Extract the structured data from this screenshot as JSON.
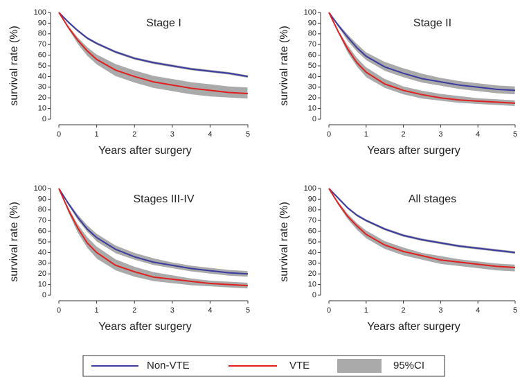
{
  "chart_data": [
    {
      "type": "line",
      "title": "Stage I",
      "xlabel": "Years after surgery",
      "ylabel": "survival rate (%)",
      "x": [
        0,
        0.25,
        0.5,
        0.75,
        1,
        1.5,
        2,
        2.5,
        3,
        3.5,
        4,
        4.5,
        5
      ],
      "xlim": [
        0,
        5
      ],
      "xticks": [
        0,
        1,
        2,
        3,
        4,
        5
      ],
      "ylim": [
        0,
        100
      ],
      "yticks": [
        0,
        10,
        20,
        30,
        40,
        50,
        60,
        70,
        80,
        90,
        100
      ],
      "band_name": "95%CI",
      "band_color": "#aaaaaa",
      "series": [
        {
          "name": "Non-VTE",
          "color": "#3b3ba0",
          "values": [
            100,
            91,
            83,
            76,
            71,
            63,
            57,
            53,
            50,
            47,
            45,
            43,
            40
          ],
          "ci_upper": [
            100,
            92.5,
            84.5,
            77.5,
            72.5,
            64.5,
            58.5,
            54.5,
            51.5,
            48.5,
            46.5,
            44.5,
            41.5
          ],
          "ci_lower": [
            100,
            89.5,
            81.5,
            74.5,
            69.5,
            61.5,
            55.5,
            51.5,
            48.5,
            45.5,
            43.5,
            41.5,
            38.5
          ]
        },
        {
          "name": "VTE",
          "color": "#e0201e",
          "values": [
            100,
            86,
            74,
            64,
            56,
            46,
            40,
            35,
            32,
            29,
            27,
            25,
            24
          ],
          "ci_upper": [
            100,
            88,
            77,
            68,
            61,
            52,
            46,
            41,
            38,
            35,
            33,
            31,
            30
          ],
          "ci_lower": [
            100,
            84,
            70,
            59,
            51,
            40,
            34,
            29,
            26,
            23,
            21,
            20,
            19
          ]
        }
      ]
    },
    {
      "type": "line",
      "title": "Stage II",
      "xlabel": "Years after surgery",
      "ylabel": "survival rate (%)",
      "x": [
        0,
        0.25,
        0.5,
        0.75,
        1,
        1.5,
        2,
        2.5,
        3,
        3.5,
        4,
        4.5,
        5
      ],
      "xlim": [
        0,
        5
      ],
      "xticks": [
        0,
        1,
        2,
        3,
        4,
        5
      ],
      "ylim": [
        0,
        100
      ],
      "yticks": [
        0,
        10,
        20,
        30,
        40,
        50,
        60,
        70,
        80,
        90,
        100
      ],
      "band_color": "#aaaaaa",
      "series": [
        {
          "color": "#3b3ba0",
          "values": [
            100,
            88,
            77,
            67,
            59,
            49,
            43,
            38,
            35,
            32,
            30,
            28,
            27
          ],
          "ci_upper": [
            100,
            90,
            80,
            71,
            63,
            54,
            48,
            43,
            39,
            36,
            34,
            32,
            31
          ],
          "ci_lower": [
            100,
            86,
            73,
            63,
            55,
            45,
            39,
            34,
            31,
            28,
            26,
            24,
            23
          ]
        },
        {
          "color": "#e0201e",
          "values": [
            100,
            82,
            66,
            53,
            44,
            33,
            27,
            23,
            20,
            18,
            17,
            16,
            15
          ],
          "ci_upper": [
            100,
            84,
            70,
            58,
            49,
            38,
            31,
            27,
            24,
            22,
            20,
            19,
            18
          ],
          "ci_lower": [
            100,
            80,
            62,
            49,
            39,
            29,
            23,
            19,
            17,
            15,
            14,
            13,
            12
          ]
        }
      ]
    },
    {
      "type": "line",
      "title": "Stages III-IV",
      "xlabel": "Years after surgery",
      "ylabel": "survival rate (%)",
      "x": [
        0,
        0.25,
        0.5,
        0.75,
        1,
        1.5,
        2,
        2.5,
        3,
        3.5,
        4,
        4.5,
        5
      ],
      "xlim": [
        0,
        5
      ],
      "xticks": [
        0,
        1,
        2,
        3,
        4,
        5
      ],
      "ylim": [
        0,
        100
      ],
      "yticks": [
        0,
        10,
        20,
        30,
        40,
        50,
        60,
        70,
        80,
        90,
        100
      ],
      "band_color": "#aaaaaa",
      "series": [
        {
          "color": "#3b3ba0",
          "values": [
            100,
            86,
            73,
            62,
            54,
            43,
            36,
            31,
            28,
            25,
            23,
            21,
            20
          ],
          "ci_upper": [
            100,
            88,
            76,
            66,
            58,
            47,
            40,
            35,
            31,
            28,
            26,
            24,
            23
          ],
          "ci_lower": [
            100,
            84,
            70,
            59,
            50,
            39,
            33,
            28,
            25,
            22,
            20,
            18,
            17
          ]
        },
        {
          "color": "#e0201e",
          "values": [
            100,
            80,
            63,
            49,
            40,
            28,
            22,
            17,
            15,
            13,
            11,
            10,
            9
          ],
          "ci_upper": [
            100,
            83,
            67,
            55,
            46,
            34,
            27,
            22,
            19,
            16,
            14,
            13,
            12
          ],
          "ci_lower": [
            100,
            77,
            58,
            44,
            34,
            23,
            17,
            13,
            11,
            9,
            8,
            7,
            6
          ]
        }
      ]
    },
    {
      "type": "line",
      "title": "All stages",
      "xlabel": "Years after surgery",
      "ylabel": "survival rate (%)",
      "x": [
        0,
        0.25,
        0.5,
        0.75,
        1,
        1.5,
        2,
        2.5,
        3,
        3.5,
        4,
        4.5,
        5
      ],
      "xlim": [
        0,
        5
      ],
      "xticks": [
        0,
        1,
        2,
        3,
        4,
        5
      ],
      "ylim": [
        0,
        100
      ],
      "yticks": [
        0,
        10,
        20,
        30,
        40,
        50,
        60,
        70,
        80,
        90,
        100
      ],
      "band_color": "#aaaaaa",
      "series": [
        {
          "color": "#3b3ba0",
          "values": [
            100,
            91,
            82,
            75,
            70,
            62,
            56,
            52,
            49,
            46,
            44,
            42,
            40
          ],
          "ci_upper": [
            100,
            92.5,
            83.5,
            76.5,
            71.5,
            63.5,
            57.5,
            53.5,
            50.5,
            47.5,
            45.5,
            43.5,
            41.5
          ],
          "ci_lower": [
            100,
            89.5,
            80.5,
            73.5,
            68.5,
            60.5,
            54.5,
            50.5,
            47.5,
            44.5,
            42.5,
            40.5,
            38.5
          ]
        },
        {
          "color": "#e0201e",
          "values": [
            100,
            86,
            74,
            65,
            57,
            47,
            41,
            37,
            33,
            31,
            29,
            27,
            26
          ],
          "ci_upper": [
            100,
            88,
            77,
            68,
            61,
            51,
            45,
            40,
            37,
            34,
            32,
            30,
            29
          ],
          "ci_lower": [
            100,
            84,
            71,
            61,
            53,
            43,
            37,
            33,
            29,
            27,
            25,
            23,
            22
          ]
        }
      ]
    }
  ]
}
